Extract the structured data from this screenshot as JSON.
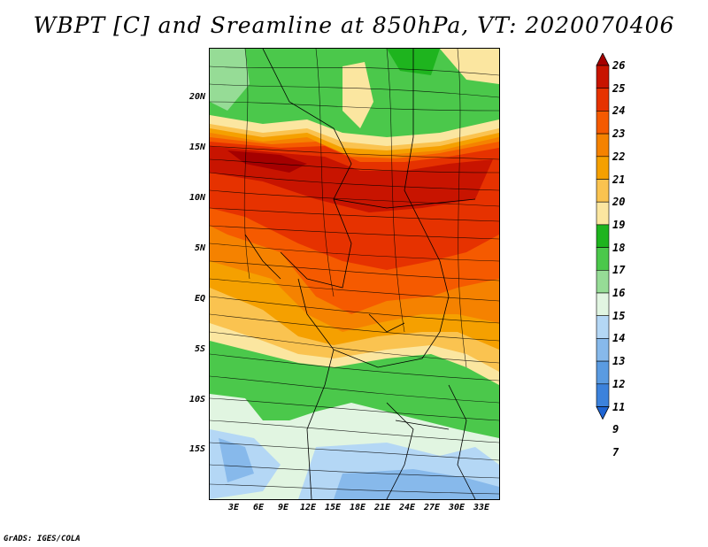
{
  "title": "WBPT [C] and Sreamline at 850hPa, VT: 2020070406",
  "credit": "GrADS: IGES/COLA",
  "lat_labels": [
    "20N",
    "15N",
    "10N",
    "5N",
    "EQ",
    "5S",
    "10S",
    "15S"
  ],
  "lon_labels": [
    "3E",
    "6E",
    "9E",
    "12E",
    "15E",
    "18E",
    "21E",
    "24E",
    "27E",
    "30E",
    "33E"
  ],
  "colorbar": {
    "labels": [
      "26",
      "25",
      "24",
      "23",
      "22",
      "21",
      "20",
      "19",
      "18",
      "17",
      "16",
      "15",
      "14",
      "13",
      "12",
      "11",
      "9",
      "7"
    ],
    "colors": [
      "#a50000",
      "#c81400",
      "#e63200",
      "#f55a00",
      "#f58200",
      "#f5a000",
      "#fac350",
      "#fbe6a0",
      "#1eb41e",
      "#4bc84b",
      "#96dc96",
      "#e1f5e1",
      "#b4d7f5",
      "#87b9eb",
      "#5a9be1",
      "#3c82dc",
      "#1e64d2"
    ]
  }
}
